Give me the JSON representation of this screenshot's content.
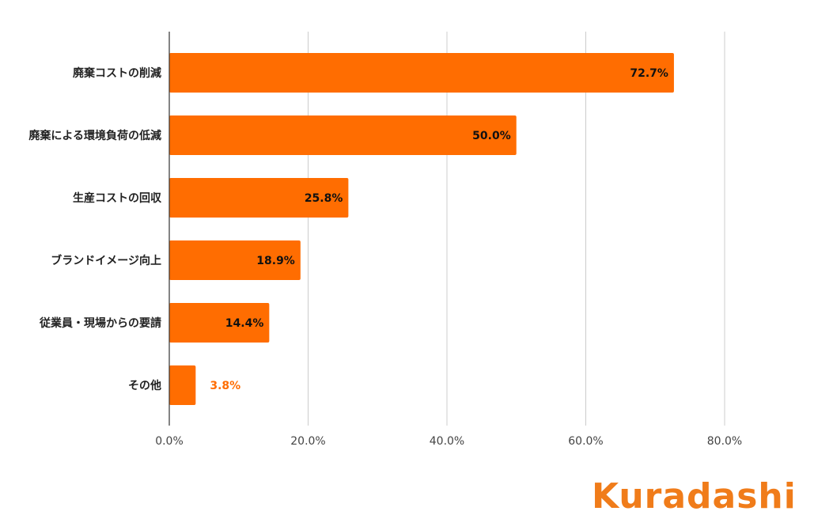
{
  "chart_data": {
    "type": "bar",
    "orientation": "horizontal",
    "categories": [
      "廃棄コストの削減",
      "廃棄による環境負荷の低減",
      "生産コストの回収",
      "ブランドイメージ向上",
      "従業員・現場からの要請",
      "その他"
    ],
    "values": [
      72.7,
      50.0,
      25.8,
      18.9,
      14.4,
      3.8
    ],
    "value_labels": [
      "72.7%",
      "50.0%",
      "25.8%",
      "18.9%",
      "14.4%",
      "3.8%"
    ],
    "xlim": [
      0,
      80
    ],
    "x_ticks": [
      "0.0%",
      "20.0%",
      "40.0%",
      "60.0%",
      "80.0%"
    ],
    "grid": "vertical",
    "title": "",
    "xlabel": "",
    "ylabel": "",
    "bar_color": "#ff6d01",
    "label_color_outside": "#ff6d01",
    "label_color_inside": "#111111"
  },
  "logo": {
    "text": "Kuradashi",
    "color": "#f07c1a"
  }
}
